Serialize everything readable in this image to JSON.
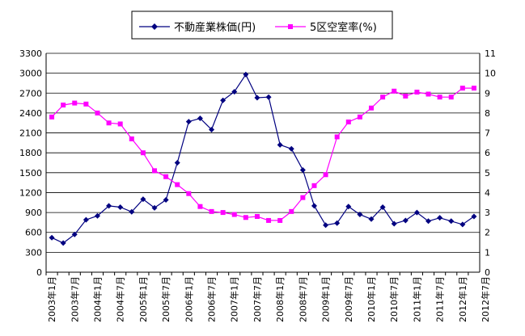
{
  "chart_data": {
    "type": "line",
    "x": [
      "2003年1月",
      "2003年4月",
      "2003年7月",
      "2003年10月",
      "2004年1月",
      "2004年4月",
      "2004年7月",
      "2004年10月",
      "2005年1月",
      "2005年4月",
      "2005年7月",
      "2005年10月",
      "2006年1月",
      "2006年4月",
      "2006年7月",
      "2006年10月",
      "2007年1月",
      "2007年4月",
      "2007年7月",
      "2007年10月",
      "2008年1月",
      "2008年4月",
      "2008年7月",
      "2008年10月",
      "2009年1月",
      "2009年4月",
      "2009年7月",
      "2009年10月",
      "2010年1月",
      "2010年4月",
      "2010年7月",
      "2010年10月",
      "2011年1月",
      "2011年4月",
      "2011年7月",
      "2011年10月",
      "2012年1月",
      "2012年4月"
    ],
    "x_tick_labels": [
      "2003年1月",
      "2003年7月",
      "2004年1月",
      "2004年7月",
      "2005年1月",
      "2005年7月",
      "2006年1月",
      "2006年7月",
      "2007年1月",
      "2007年7月",
      "2008年1月",
      "2008年7月",
      "2009年1月",
      "2009年7月",
      "2010年1月",
      "2010年7月",
      "2011年1月",
      "2011年7月",
      "2012年1月",
      "2012年7月"
    ],
    "series": [
      {
        "name": "不動産業株価(円)",
        "axis": "left",
        "color": "#000080",
        "marker": "diamond",
        "values": [
          520,
          440,
          570,
          790,
          850,
          1000,
          980,
          910,
          1100,
          970,
          1090,
          1650,
          2270,
          2320,
          2150,
          2590,
          2720,
          2980,
          2630,
          2640,
          1920,
          1860,
          1540,
          1000,
          710,
          740,
          990,
          870,
          800,
          980,
          730,
          780,
          900,
          770,
          820,
          770,
          720,
          840
        ]
      },
      {
        "name": "5区空室率(%)",
        "axis": "right",
        "color": "#ff00ff",
        "marker": "square",
        "values": [
          7.8,
          8.4,
          8.5,
          8.45,
          8.0,
          7.5,
          7.45,
          6.7,
          6.0,
          5.1,
          4.8,
          4.4,
          3.95,
          3.3,
          3.05,
          3.0,
          2.9,
          2.75,
          2.8,
          2.6,
          2.6,
          3.05,
          3.75,
          4.35,
          4.9,
          6.8,
          7.55,
          7.8,
          8.25,
          8.8,
          9.1,
          8.85,
          9.05,
          8.95,
          8.8,
          8.8,
          9.25,
          9.25
        ]
      }
    ],
    "y_left": {
      "min": 0,
      "max": 3300,
      "ticks": [
        "0",
        "300",
        "600",
        "900",
        "1200",
        "1500",
        "1800",
        "2100",
        "2400",
        "2700",
        "3000",
        "3300"
      ]
    },
    "y_right": {
      "min": 0,
      "max": 11,
      "ticks": [
        "0",
        "1",
        "2",
        "3",
        "4",
        "5",
        "6",
        "7",
        "8",
        "9",
        "10",
        "11"
      ]
    },
    "grid": true,
    "legend_position": "top-center"
  }
}
